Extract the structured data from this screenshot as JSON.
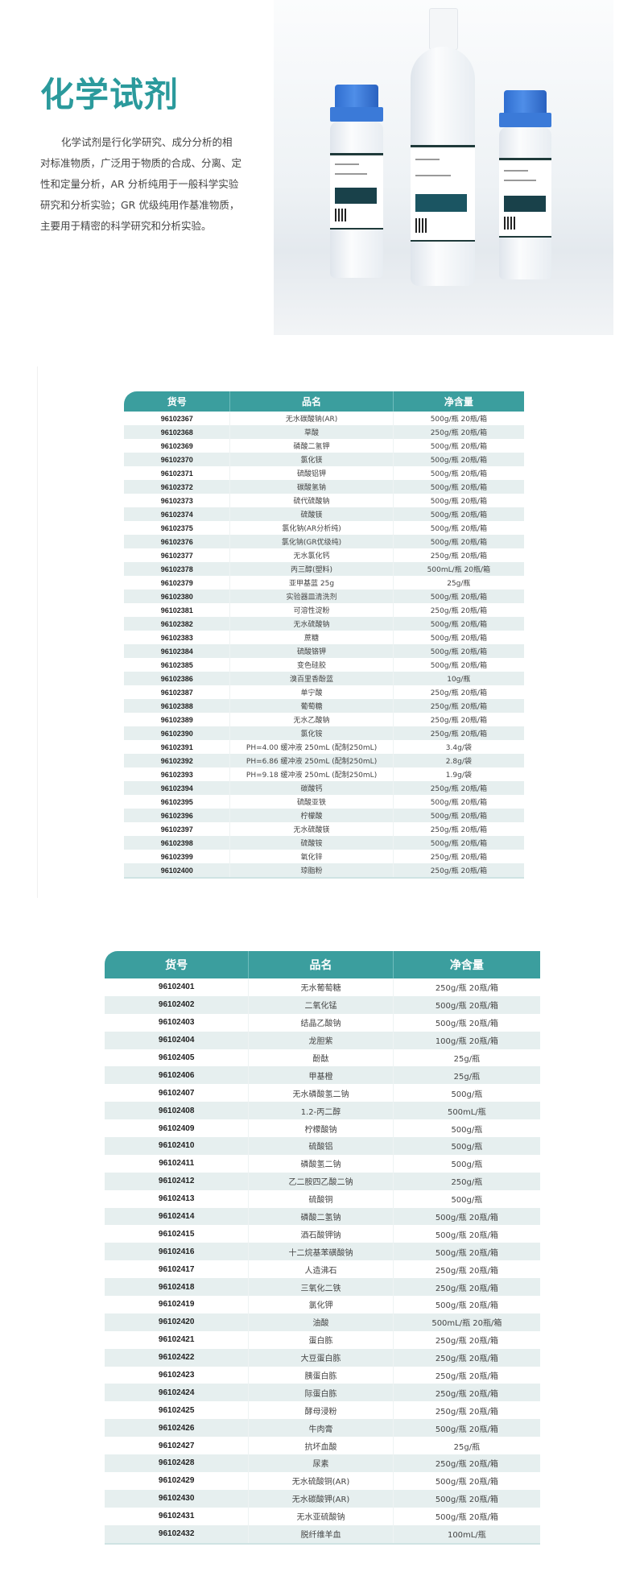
{
  "title": "化学试剂",
  "intro": "化学试剂是行化学研究、成分分析的相对标准物质，广泛用于物质的合成、分离、定性和定量分析，AR 分析纯用于一般科学实验研究和分析实验；GR 优级纯用作基准物质，主要用于精密的科学研究和分析实验。",
  "colors": {
    "accent": "#2b9a9c",
    "header": "#3b9e9e",
    "stripe": "#e6efef",
    "cap": "#3b7ad8"
  },
  "tables": [
    {
      "headers": [
        "货号",
        "品名",
        "净含量"
      ],
      "rows": [
        [
          "96102367",
          "无水碳酸钠(AR)",
          "500g/瓶  20瓶/箱"
        ],
        [
          "96102368",
          "草酸",
          "250g/瓶  20瓶/箱"
        ],
        [
          "96102369",
          "磷酸二氢钾",
          "500g/瓶  20瓶/箱"
        ],
        [
          "96102370",
          "氯化镁",
          "500g/瓶  20瓶/箱"
        ],
        [
          "96102371",
          "硫酸铝钾",
          "500g/瓶  20瓶/箱"
        ],
        [
          "96102372",
          "碳酸氢钠",
          "500g/瓶  20瓶/箱"
        ],
        [
          "96102373",
          "硫代硫酸钠",
          "500g/瓶  20瓶/箱"
        ],
        [
          "96102374",
          "硫酸镁",
          "500g/瓶  20瓶/箱"
        ],
        [
          "96102375",
          "氯化钠(AR分析纯)",
          "500g/瓶  20瓶/箱"
        ],
        [
          "96102376",
          "氯化钠(GR优级纯)",
          "500g/瓶  20瓶/箱"
        ],
        [
          "96102377",
          "无水氯化钙",
          "250g/瓶  20瓶/箱"
        ],
        [
          "96102378",
          "丙三醇(塑料)",
          "500mL/瓶  20瓶/箱"
        ],
        [
          "96102379",
          "亚甲基蓝 25g",
          "25g/瓶"
        ],
        [
          "96102380",
          "实验器皿清洗剂",
          "500g/瓶  20瓶/箱"
        ],
        [
          "96102381",
          "可溶性淀粉",
          "250g/瓶  20瓶/箱"
        ],
        [
          "96102382",
          "无水硫酸钠",
          "500g/瓶  20瓶/箱"
        ],
        [
          "96102383",
          "蔗糖",
          "500g/瓶  20瓶/箱"
        ],
        [
          "96102384",
          "硫酸铬钾",
          "500g/瓶  20瓶/箱"
        ],
        [
          "96102385",
          "变色硅胶",
          "500g/瓶  20瓶/箱"
        ],
        [
          "96102386",
          "溴百里香酚蓝",
          "10g/瓶"
        ],
        [
          "96102387",
          "单宁酸",
          "250g/瓶  20瓶/箱"
        ],
        [
          "96102388",
          "葡萄糖",
          "250g/瓶  20瓶/箱"
        ],
        [
          "96102389",
          "无水乙酸钠",
          "250g/瓶  20瓶/箱"
        ],
        [
          "96102390",
          "氯化铵",
          "250g/瓶  20瓶/箱"
        ],
        [
          "96102391",
          "PH=4.00 缓冲液 250mL (配制250mL)",
          "3.4g/袋"
        ],
        [
          "96102392",
          "PH=6.86 缓冲液 250mL (配制250mL)",
          "2.8g/袋"
        ],
        [
          "96102393",
          "PH=9.18 缓冲液 250mL (配制250mL)",
          "1.9g/袋"
        ],
        [
          "96102394",
          "碳酸钙",
          "250g/瓶  20瓶/箱"
        ],
        [
          "96102395",
          "硫酸亚铁",
          "500g/瓶  20瓶/箱"
        ],
        [
          "96102396",
          "柠檬酸",
          "500g/瓶  20瓶/箱"
        ],
        [
          "96102397",
          "无水硫酸镁",
          "250g/瓶  20瓶/箱"
        ],
        [
          "96102398",
          "硫酸铵",
          "500g/瓶  20瓶/箱"
        ],
        [
          "96102399",
          "氧化锌",
          "250g/瓶  20瓶/箱"
        ],
        [
          "96102400",
          "琼脂粉",
          "250g/瓶  20瓶/箱"
        ]
      ]
    },
    {
      "headers": [
        "货号",
        "品名",
        "净含量"
      ],
      "rows": [
        [
          "96102401",
          "无水葡萄糖",
          "250g/瓶  20瓶/箱"
        ],
        [
          "96102402",
          "二氧化锰",
          "500g/瓶  20瓶/箱"
        ],
        [
          "96102403",
          "结晶乙酸钠",
          "500g/瓶  20瓶/箱"
        ],
        [
          "96102404",
          "龙胆紫",
          "100g/瓶  20瓶/箱"
        ],
        [
          "96102405",
          "酚酞",
          "25g/瓶"
        ],
        [
          "96102406",
          "甲基橙",
          "25g/瓶"
        ],
        [
          "96102407",
          "无水磷酸氢二钠",
          "500g/瓶"
        ],
        [
          "96102408",
          "1.2-丙二醇",
          "500mL/瓶"
        ],
        [
          "96102409",
          "柠檬酸钠",
          "500g/瓶"
        ],
        [
          "96102410",
          "硫酸铝",
          "500g/瓶"
        ],
        [
          "96102411",
          "磷酸氢二钠",
          "500g/瓶"
        ],
        [
          "96102412",
          "乙二胺四乙酸二钠",
          "250g/瓶"
        ],
        [
          "96102413",
          "硫酸铜",
          "500g/瓶"
        ],
        [
          "96102414",
          "磷酸二氢钠",
          "500g/瓶 20瓶/箱"
        ],
        [
          "96102415",
          "酒石酸钾钠",
          "500g/瓶 20瓶/箱"
        ],
        [
          "96102416",
          "十二烷基苯磺酸钠",
          "500g/瓶 20瓶/箱"
        ],
        [
          "96102417",
          "人造沸石",
          "250g/瓶 20瓶/箱"
        ],
        [
          "96102418",
          "三氧化二铁",
          "250g/瓶  20瓶/箱"
        ],
        [
          "96102419",
          "氯化钾",
          "500g/瓶  20瓶/箱"
        ],
        [
          "96102420",
          "油酸",
          "500mL/瓶  20瓶/箱"
        ],
        [
          "96102421",
          "蛋白胨",
          "250g/瓶  20瓶/箱"
        ],
        [
          "96102422",
          "大豆蛋白胨",
          "250g/瓶  20瓶/箱"
        ],
        [
          "96102423",
          "胰蛋白胨",
          "250g/瓶  20瓶/箱"
        ],
        [
          "96102424",
          "际蛋白胨",
          "250g/瓶  20瓶/箱"
        ],
        [
          "96102425",
          "酵母浸粉",
          "250g/瓶  20瓶/箱"
        ],
        [
          "96102426",
          "牛肉膏",
          "500g/瓶 20瓶/箱"
        ],
        [
          "96102427",
          "抗坏血酸",
          "25g/瓶"
        ],
        [
          "96102428",
          "尿素",
          "250g/瓶  20瓶/箱"
        ],
        [
          "96102429",
          "无水硫酸铜(AR)",
          "500g/瓶  20瓶/箱"
        ],
        [
          "96102430",
          "无水碳酸钾(AR)",
          "500g/瓶  20瓶/箱"
        ],
        [
          "96102431",
          "无水亚硫酸钠",
          "500g/瓶  20瓶/箱"
        ],
        [
          "96102432",
          "脱纤维羊血",
          "100mL/瓶"
        ]
      ]
    }
  ]
}
